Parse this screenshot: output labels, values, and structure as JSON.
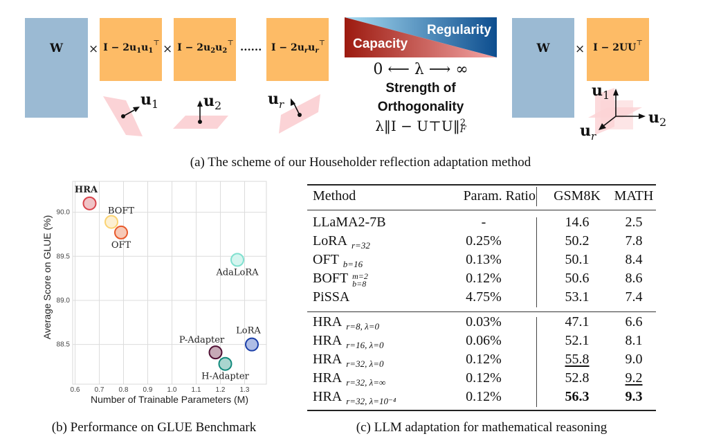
{
  "figure_a": {
    "w_label": "W",
    "times_symbol": "×",
    "ellipsis": "......",
    "blocks": [
      {
        "label": "I − 2u",
        "sub1": "1",
        "mid": "u",
        "sub2": "1",
        "sup": "⊤"
      },
      {
        "label": "I − 2u",
        "sub1": "2",
        "mid": "u",
        "sub2": "2",
        "sup": "⊤"
      },
      {
        "label": "I − 2u",
        "sub1": "r",
        "mid": "u",
        "sub2": "r",
        "sup": "⊤"
      }
    ],
    "vectors": [
      {
        "name": "u",
        "sub": "1"
      },
      {
        "name": "u",
        "sub": "2"
      },
      {
        "name": "u",
        "sub": "r"
      }
    ],
    "gradient": {
      "capacity_label": "Capacity",
      "regularity_label": "Regularity",
      "capacity_color_dark": "#9c1a0f",
      "capacity_color_light": "#f4a6a6",
      "regularity_color_light": "#a8dcf2",
      "regularity_color_dark": "#0d4e8f"
    },
    "lambda_scale": "0  ⟵  λ ⟶  ∞",
    "strength_line1": "Strength of",
    "strength_line2": "Orthogonality",
    "regularizer": "λ‖I − U⊤U‖",
    "regularizer_sup": "2",
    "regularizer_sub": "F",
    "right_w_label": "W",
    "right_block_label": "I − 2UU",
    "right_block_sup": "⊤",
    "axes_vectors": [
      {
        "name": "u",
        "sub": "1"
      },
      {
        "name": "u",
        "sub": "2"
      },
      {
        "name": "u",
        "sub": "r"
      }
    ],
    "caption": "(a) The scheme of our Householder reflection adaptation method",
    "colors": {
      "w_box": "#9bbad3",
      "reflect_box": "#fdbb66",
      "plane": "#fbd3d6"
    }
  },
  "chart_data": {
    "type": "scatter",
    "title": "",
    "xlabel": "Number of Trainable Parameters (M)",
    "ylabel": "Average Score on GLUE (%)",
    "xlim": [
      0.59,
      1.39
    ],
    "ylim": [
      88.05,
      90.35
    ],
    "xticks": [
      "0.6",
      "0.7",
      "0.8",
      "0.9",
      "1.0",
      "1.1",
      "1.2",
      "1.3"
    ],
    "xtick_values": [
      0.6,
      0.7,
      0.8,
      0.9,
      1.0,
      1.1,
      1.2,
      1.3
    ],
    "yticks": [
      "88.5",
      "89.0",
      "89.5",
      "90.0"
    ],
    "ytick_values": [
      88.5,
      89.0,
      89.5,
      90.0
    ],
    "grid": true,
    "points": [
      {
        "name": "HRA",
        "x": 0.66,
        "y": 90.1,
        "color": "#d9434b",
        "fill": "#f0c3c6",
        "label_pos": "above",
        "highlight": true
      },
      {
        "name": "BOFT",
        "x": 0.75,
        "y": 89.89,
        "color": "#fbd372",
        "fill": "#fdf0d2",
        "label_pos": "upper-right",
        "highlight": false
      },
      {
        "name": "OFT",
        "x": 0.79,
        "y": 89.77,
        "color": "#e8592b",
        "fill": "#f7c9b6",
        "label_pos": "below",
        "highlight": false
      },
      {
        "name": "AdaLoRA",
        "x": 1.27,
        "y": 89.46,
        "color": "#7fe0cf",
        "fill": "#d5f5ef",
        "label_pos": "below",
        "highlight": false
      },
      {
        "name": "P-Adapter",
        "x": 1.18,
        "y": 88.41,
        "color": "#4f0f33",
        "fill": "#c6a9b6",
        "label_pos": "upper-left",
        "highlight": false
      },
      {
        "name": "H-Adapter",
        "x": 1.22,
        "y": 88.28,
        "color": "#128a7c",
        "fill": "#a9d5cf",
        "label_pos": "below",
        "highlight": false
      },
      {
        "name": "LoRA",
        "x": 1.33,
        "y": 88.5,
        "color": "#1a3ea8",
        "fill": "#aebde6",
        "label_pos": "above",
        "highlight": false
      }
    ],
    "highlight_color": "#b22028",
    "caption": "(b) Performance on GLUE Benchmark"
  },
  "table": {
    "headers": [
      "Method",
      "Param. Ratio",
      "GSM8K",
      "MATH"
    ],
    "group1": [
      {
        "method": "LLaMA2-7B",
        "sub": "",
        "sup": "",
        "ratio": "-",
        "gsm8k": "14.6",
        "math": "2.5"
      },
      {
        "method": "LoRA",
        "sub": "r=32",
        "sup": "",
        "ratio": "0.25%",
        "gsm8k": "50.2",
        "math": "7.8"
      },
      {
        "method": "OFT",
        "sub": "b=16",
        "sup": "",
        "ratio": "0.13%",
        "gsm8k": "50.1",
        "math": "8.4"
      },
      {
        "method": "BOFT",
        "sub": "b=8",
        "sup": "m=2",
        "ratio": "0.12%",
        "gsm8k": "50.6",
        "math": "8.6"
      },
      {
        "method": "PiSSA",
        "sub": "",
        "sup": "",
        "ratio": "4.75%",
        "gsm8k": "53.1",
        "math": "7.4"
      }
    ],
    "group2": [
      {
        "method": "HRA",
        "sub": "r=8,  λ=0",
        "ratio": "0.03%",
        "gsm8k": "47.1",
        "math": "6.6",
        "gsm8k_style": "",
        "math_style": ""
      },
      {
        "method": "HRA",
        "sub": "r=16,  λ=0",
        "ratio": "0.06%",
        "gsm8k": "52.1",
        "math": "8.1",
        "gsm8k_style": "",
        "math_style": ""
      },
      {
        "method": "HRA",
        "sub": "r=32,  λ=0",
        "ratio": "0.12%",
        "gsm8k": "55.8",
        "math": "9.0",
        "gsm8k_style": "underline",
        "math_style": ""
      },
      {
        "method": "HRA",
        "sub": "r=32,  λ=∞",
        "ratio": "0.12%",
        "gsm8k": "52.8",
        "math": "9.2",
        "gsm8k_style": "",
        "math_style": "underline"
      },
      {
        "method": "HRA",
        "sub": "r=32,  λ=10⁻⁴",
        "ratio": "0.12%",
        "gsm8k": "56.3",
        "math": "9.3",
        "gsm8k_style": "bold",
        "math_style": "bold"
      }
    ],
    "caption": "(c) LLM adaptation for mathematical reasoning"
  }
}
